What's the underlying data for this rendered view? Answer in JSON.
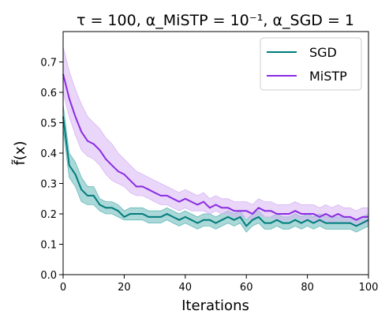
{
  "chart_data": {
    "type": "line",
    "title": "τ = 100, α_MiSTP = 10⁻¹, α_SGD = 1",
    "xlabel": "Iterations",
    "ylabel": "f̃(x)",
    "xlim": [
      0,
      100
    ],
    "ylim": [
      0,
      0.8
    ],
    "xticks": [
      0,
      20,
      40,
      60,
      80,
      100
    ],
    "yticks": [
      0.0,
      0.1,
      0.2,
      0.3,
      0.4,
      0.5,
      0.6,
      0.7
    ],
    "grid": false,
    "legend_position": "upper right",
    "series": [
      {
        "name": "SGD",
        "color": "#007b7b",
        "band_color": "#66b8b8",
        "x": [
          0,
          2,
          4,
          6,
          8,
          10,
          12,
          14,
          16,
          18,
          20,
          22,
          24,
          26,
          28,
          30,
          32,
          34,
          36,
          38,
          40,
          42,
          44,
          46,
          48,
          50,
          52,
          54,
          56,
          58,
          60,
          62,
          64,
          66,
          68,
          70,
          72,
          74,
          76,
          78,
          80,
          82,
          84,
          86,
          88,
          90,
          92,
          94,
          96,
          98,
          100
        ],
        "y": [
          0.52,
          0.36,
          0.33,
          0.28,
          0.26,
          0.26,
          0.23,
          0.22,
          0.22,
          0.21,
          0.19,
          0.2,
          0.2,
          0.2,
          0.19,
          0.19,
          0.19,
          0.2,
          0.19,
          0.18,
          0.19,
          0.18,
          0.17,
          0.18,
          0.18,
          0.17,
          0.18,
          0.19,
          0.18,
          0.19,
          0.16,
          0.18,
          0.19,
          0.17,
          0.17,
          0.18,
          0.17,
          0.17,
          0.18,
          0.17,
          0.18,
          0.17,
          0.18,
          0.17,
          0.17,
          0.17,
          0.17,
          0.17,
          0.16,
          0.17,
          0.18
        ],
        "lower": [
          0.48,
          0.32,
          0.29,
          0.24,
          0.23,
          0.23,
          0.21,
          0.2,
          0.2,
          0.19,
          0.18,
          0.18,
          0.18,
          0.18,
          0.17,
          0.17,
          0.17,
          0.18,
          0.17,
          0.16,
          0.17,
          0.16,
          0.15,
          0.16,
          0.16,
          0.15,
          0.16,
          0.17,
          0.16,
          0.17,
          0.14,
          0.16,
          0.17,
          0.15,
          0.15,
          0.16,
          0.15,
          0.15,
          0.16,
          0.15,
          0.16,
          0.15,
          0.16,
          0.15,
          0.15,
          0.15,
          0.15,
          0.15,
          0.14,
          0.15,
          0.16
        ],
        "upper": [
          0.56,
          0.4,
          0.37,
          0.32,
          0.29,
          0.29,
          0.25,
          0.24,
          0.24,
          0.23,
          0.21,
          0.22,
          0.22,
          0.22,
          0.21,
          0.21,
          0.21,
          0.22,
          0.21,
          0.2,
          0.21,
          0.2,
          0.19,
          0.2,
          0.2,
          0.19,
          0.2,
          0.21,
          0.2,
          0.21,
          0.18,
          0.2,
          0.21,
          0.19,
          0.19,
          0.2,
          0.19,
          0.19,
          0.2,
          0.19,
          0.2,
          0.19,
          0.2,
          0.19,
          0.19,
          0.19,
          0.19,
          0.19,
          0.18,
          0.19,
          0.2
        ]
      },
      {
        "name": "MiSTP",
        "color": "#8a2be2",
        "band_color": "#d7b4f3",
        "x": [
          0,
          2,
          4,
          6,
          8,
          10,
          12,
          14,
          16,
          18,
          20,
          22,
          24,
          26,
          28,
          30,
          32,
          34,
          36,
          38,
          40,
          42,
          44,
          46,
          48,
          50,
          52,
          54,
          56,
          58,
          60,
          62,
          64,
          66,
          68,
          70,
          72,
          74,
          76,
          78,
          80,
          82,
          84,
          86,
          88,
          90,
          92,
          94,
          96,
          98,
          100
        ],
        "y": [
          0.66,
          0.58,
          0.52,
          0.47,
          0.44,
          0.43,
          0.41,
          0.38,
          0.36,
          0.34,
          0.33,
          0.31,
          0.29,
          0.29,
          0.28,
          0.27,
          0.26,
          0.26,
          0.25,
          0.24,
          0.25,
          0.24,
          0.23,
          0.24,
          0.22,
          0.23,
          0.22,
          0.22,
          0.21,
          0.21,
          0.21,
          0.2,
          0.22,
          0.21,
          0.21,
          0.2,
          0.2,
          0.2,
          0.21,
          0.2,
          0.2,
          0.2,
          0.19,
          0.2,
          0.19,
          0.2,
          0.19,
          0.19,
          0.18,
          0.19,
          0.19
        ],
        "lower": [
          0.6,
          0.52,
          0.46,
          0.41,
          0.39,
          0.38,
          0.36,
          0.33,
          0.31,
          0.3,
          0.29,
          0.27,
          0.26,
          0.26,
          0.25,
          0.24,
          0.23,
          0.23,
          0.22,
          0.21,
          0.22,
          0.21,
          0.21,
          0.21,
          0.2,
          0.21,
          0.2,
          0.2,
          0.19,
          0.19,
          0.19,
          0.18,
          0.2,
          0.19,
          0.19,
          0.18,
          0.18,
          0.18,
          0.19,
          0.18,
          0.18,
          0.18,
          0.17,
          0.18,
          0.17,
          0.18,
          0.17,
          0.17,
          0.16,
          0.17,
          0.17
        ],
        "upper": [
          0.75,
          0.67,
          0.61,
          0.56,
          0.52,
          0.5,
          0.48,
          0.45,
          0.43,
          0.4,
          0.38,
          0.36,
          0.34,
          0.33,
          0.32,
          0.31,
          0.3,
          0.29,
          0.28,
          0.27,
          0.28,
          0.27,
          0.26,
          0.27,
          0.25,
          0.26,
          0.25,
          0.25,
          0.24,
          0.24,
          0.24,
          0.23,
          0.25,
          0.24,
          0.24,
          0.23,
          0.23,
          0.23,
          0.24,
          0.23,
          0.23,
          0.23,
          0.22,
          0.23,
          0.22,
          0.23,
          0.22,
          0.22,
          0.21,
          0.22,
          0.22
        ]
      }
    ]
  }
}
